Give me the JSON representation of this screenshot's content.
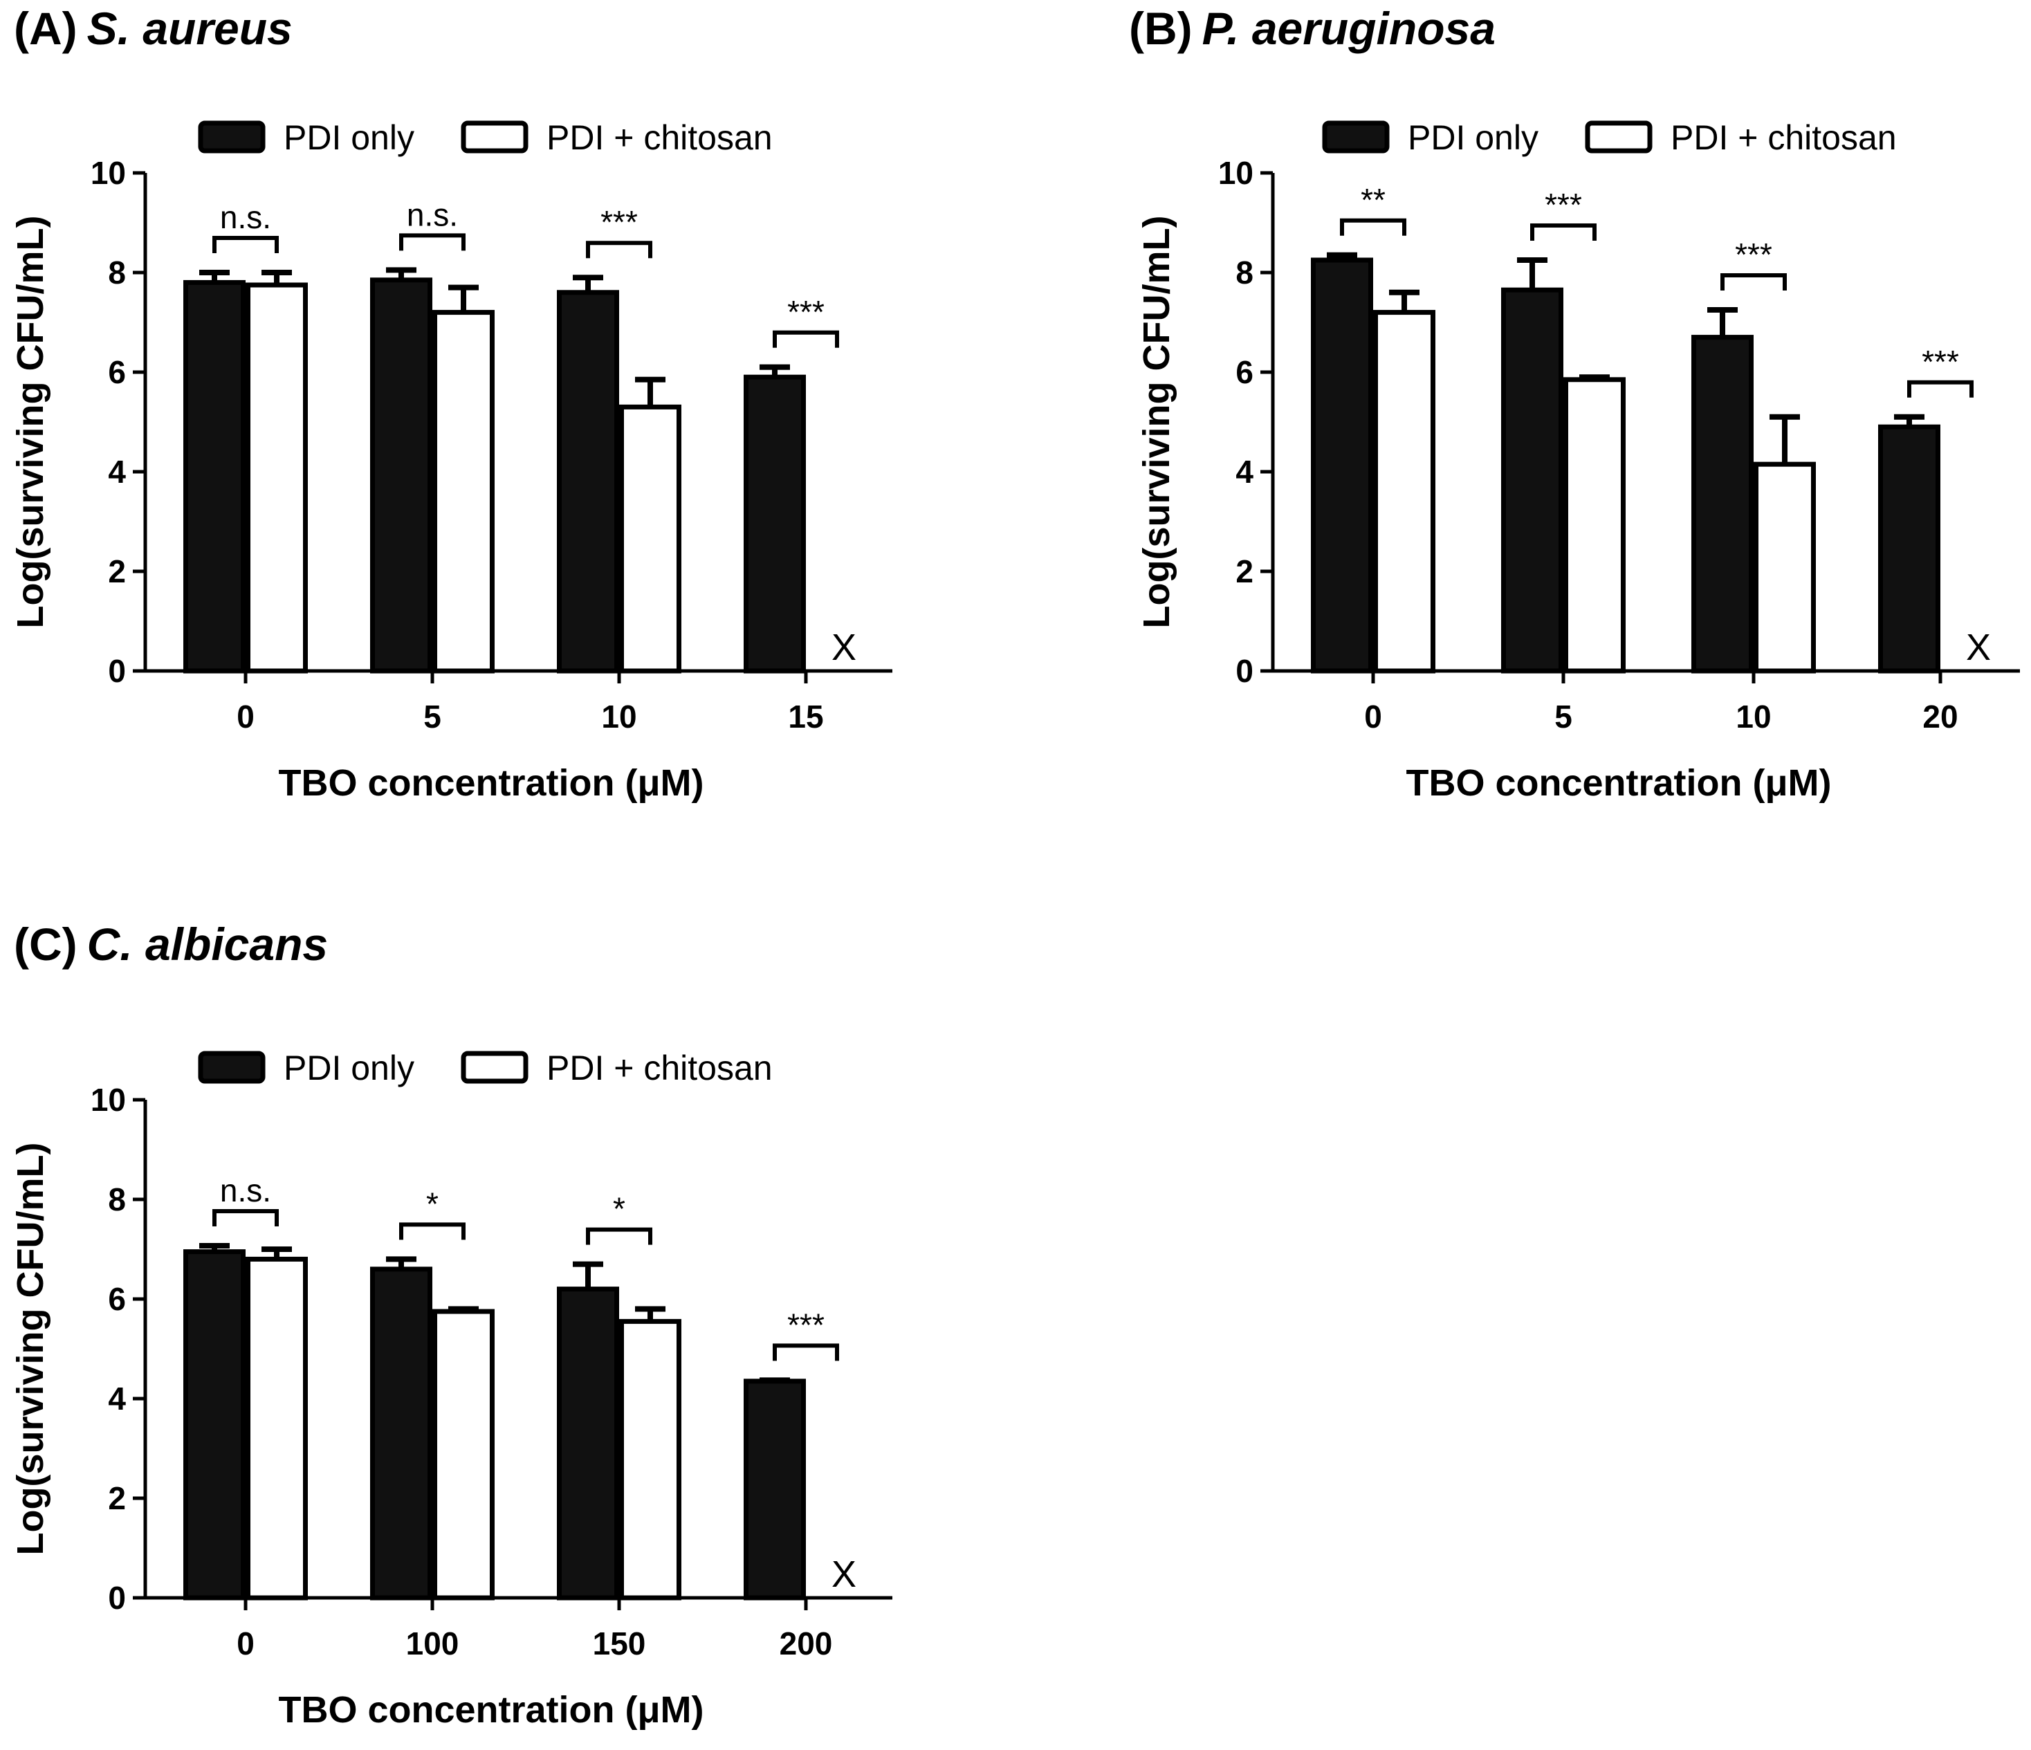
{
  "figure": {
    "colors": {
      "bar_pdi_only": "#111111",
      "bar_pdi_chitosan": "#ffffff",
      "stroke": "#000000"
    }
  },
  "chart_data": [
    {
      "panel": "A",
      "type": "bar",
      "title_prefix": "(A)",
      "title_species": "S. aureus",
      "xlabel": "TBO concentration (μM)",
      "ylabel": "Log(surviving CFU/mL)",
      "ylim": [
        0,
        10
      ],
      "yticks": [
        "0",
        "2",
        "4",
        "6",
        "8",
        "10"
      ],
      "categories": [
        "0",
        "5",
        "10",
        "15"
      ],
      "legend": [
        "PDI only",
        "PDI + chitosan"
      ],
      "series": [
        {
          "name": "PDI only",
          "values": [
            7.8,
            7.85,
            7.6,
            5.9
          ],
          "errors": [
            0.2,
            0.2,
            0.3,
            0.2
          ]
        },
        {
          "name": "PDI + chitosan",
          "values": [
            7.75,
            7.2,
            5.3,
            0
          ],
          "errors": [
            0.25,
            0.5,
            0.55,
            0
          ]
        }
      ],
      "significance": [
        "n.s.",
        "n.s.",
        "***",
        "***"
      ],
      "missing_markers": [
        "",
        "",
        "",
        "X"
      ]
    },
    {
      "panel": "B",
      "type": "bar",
      "title_prefix": "(B)",
      "title_species": "P. aeruginosa",
      "xlabel": "TBO concentration (μM)",
      "ylabel": "Log(surviving CFU/mL)",
      "ylim": [
        0,
        10
      ],
      "yticks": [
        "0",
        "2",
        "4",
        "6",
        "8",
        "10"
      ],
      "categories": [
        "0",
        "5",
        "10",
        "20"
      ],
      "legend": [
        "PDI only",
        "PDI + chitosan"
      ],
      "series": [
        {
          "name": "PDI only",
          "values": [
            8.25,
            7.65,
            6.7,
            4.9
          ],
          "errors": [
            0.1,
            0.6,
            0.55,
            0.2
          ]
        },
        {
          "name": "PDI + chitosan",
          "values": [
            7.2,
            5.85,
            4.15,
            0
          ],
          "errors": [
            0.4,
            0.05,
            0.95,
            0
          ]
        }
      ],
      "significance": [
        "**",
        "***",
        "***",
        "***"
      ],
      "missing_markers": [
        "",
        "",
        "",
        "X"
      ]
    },
    {
      "panel": "C",
      "type": "bar",
      "title_prefix": "(C)",
      "title_species": "C. albicans",
      "xlabel": "TBO concentration (μM)",
      "ylabel": "Log(surviving CFU/mL)",
      "ylim": [
        0,
        10
      ],
      "yticks": [
        "0",
        "2",
        "4",
        "6",
        "8",
        "10"
      ],
      "categories": [
        "0",
        "100",
        "150",
        "200"
      ],
      "legend": [
        "PDI only",
        "PDI + chitosan"
      ],
      "series": [
        {
          "name": "PDI only",
          "values": [
            6.95,
            6.6,
            6.2,
            4.35
          ],
          "errors": [
            0.12,
            0.2,
            0.5,
            0.02
          ]
        },
        {
          "name": "PDI + chitosan",
          "values": [
            6.8,
            5.75,
            5.55,
            0
          ],
          "errors": [
            0.2,
            0.05,
            0.25,
            0
          ]
        }
      ],
      "significance": [
        "n.s.",
        "*",
        "*",
        "***"
      ],
      "missing_markers": [
        "",
        "",
        "",
        "X"
      ]
    }
  ]
}
